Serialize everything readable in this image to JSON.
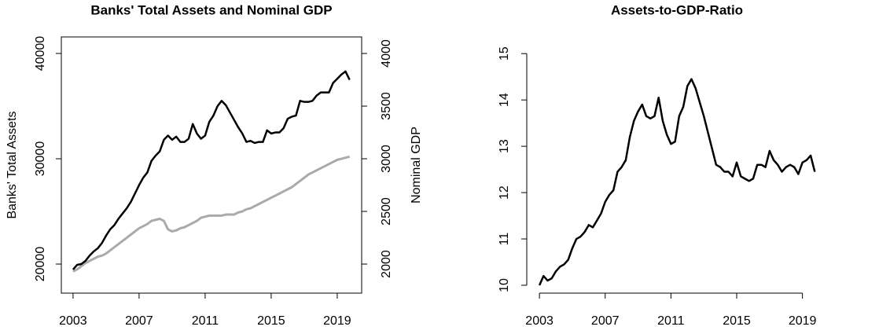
{
  "chart_data": [
    {
      "type": "line",
      "title": "Banks' Total Assets and Nominal GDP",
      "y_label": "Banks' Total Assets",
      "y2_label": "Nominal GDP",
      "x": [
        2003,
        2003.25,
        2003.5,
        2003.75,
        2004,
        2004.25,
        2004.5,
        2004.75,
        2005,
        2005.25,
        2005.5,
        2005.75,
        2006,
        2006.25,
        2006.5,
        2006.75,
        2007,
        2007.25,
        2007.5,
        2007.75,
        2008,
        2008.25,
        2008.5,
        2008.75,
        2009,
        2009.25,
        2009.5,
        2009.75,
        2010,
        2010.25,
        2010.5,
        2010.75,
        2011,
        2011.25,
        2011.5,
        2011.75,
        2012,
        2012.25,
        2012.5,
        2012.75,
        2013,
        2013.25,
        2013.5,
        2013.75,
        2014,
        2014.25,
        2014.5,
        2014.75,
        2015,
        2015.25,
        2015.5,
        2015.75,
        2016,
        2016.25,
        2016.5,
        2016.75,
        2017,
        2017.25,
        2017.5,
        2017.75,
        2018,
        2018.25,
        2018.5,
        2018.75,
        2019,
        2019.25,
        2019.5,
        2019.75
      ],
      "series": [
        {
          "color": "#aaaaaa",
          "axis": "y2",
          "values": [
            1930,
            1950,
            1980,
            2010,
            2030,
            2050,
            2070,
            2080,
            2100,
            2130,
            2160,
            2190,
            2220,
            2250,
            2280,
            2310,
            2340,
            2360,
            2380,
            2410,
            2420,
            2430,
            2410,
            2330,
            2310,
            2320,
            2340,
            2350,
            2370,
            2390,
            2410,
            2440,
            2450,
            2460,
            2460,
            2460,
            2460,
            2470,
            2470,
            2470,
            2490,
            2500,
            2520,
            2530,
            2550,
            2570,
            2590,
            2610,
            2630,
            2650,
            2670,
            2690,
            2710,
            2730,
            2760,
            2790,
            2820,
            2850,
            2870,
            2890,
            2910,
            2930,
            2950,
            2970,
            2990,
            3000,
            3010,
            3020
          ]
        },
        {
          "color": "#000000",
          "values": [
            19480,
            19930,
            20000,
            20300,
            20800,
            21200,
            21500,
            22000,
            22700,
            23300,
            23700,
            24300,
            24800,
            25300,
            25900,
            26700,
            27500,
            28200,
            28700,
            29800,
            30300,
            30700,
            31800,
            32200,
            31800,
            32100,
            31600,
            31600,
            31900,
            33300,
            32400,
            31900,
            32200,
            33500,
            34100,
            35000,
            35500,
            35100,
            34400,
            33700,
            33000,
            32400,
            31600,
            31700,
            31500,
            31600,
            31600,
            32700,
            32400,
            32500,
            32500,
            32900,
            33800,
            34000,
            34100,
            35500,
            35400,
            35400,
            35500,
            36000,
            36300,
            36300,
            36300,
            37200,
            37600,
            38000,
            38300,
            37500
          ]
        }
      ],
      "xlim": [
        2002.29,
        2020.48
      ],
      "xticks": [
        2003,
        2007,
        2011,
        2015,
        2019
      ],
      "ylim": [
        17240,
        41570
      ],
      "yticks": [
        20000,
        30000,
        40000
      ],
      "y2lim": [
        1724,
        4157
      ],
      "y2ticks": [
        2000,
        2500,
        3000,
        3500,
        4000
      ],
      "frame": true
    },
    {
      "type": "line",
      "title": "Assets-to-GDP-Ratio",
      "x": [
        2003,
        2003.25,
        2003.5,
        2003.75,
        2004,
        2004.25,
        2004.5,
        2004.75,
        2005,
        2005.25,
        2005.5,
        2005.75,
        2006,
        2006.25,
        2006.5,
        2006.75,
        2007,
        2007.25,
        2007.5,
        2007.75,
        2008,
        2008.25,
        2008.5,
        2008.75,
        2009,
        2009.25,
        2009.5,
        2009.75,
        2010,
        2010.25,
        2010.5,
        2010.75,
        2011,
        2011.25,
        2011.5,
        2011.75,
        2012,
        2012.25,
        2012.5,
        2012.75,
        2013,
        2013.25,
        2013.5,
        2013.75,
        2014,
        2014.25,
        2014.5,
        2014.75,
        2015,
        2015.25,
        2015.5,
        2015.75,
        2016,
        2016.25,
        2016.5,
        2016.75,
        2017,
        2017.25,
        2017.5,
        2017.75,
        2018,
        2018.25,
        2018.5,
        2018.75,
        2019,
        2019.25,
        2019.5,
        2019.75
      ],
      "series": [
        {
          "color": "#000000",
          "values": [
            10.0,
            10.2,
            10.1,
            10.15,
            10.3,
            10.4,
            10.45,
            10.55,
            10.8,
            11.0,
            11.05,
            11.15,
            11.3,
            11.25,
            11.4,
            11.55,
            11.8,
            11.95,
            12.05,
            12.45,
            12.55,
            12.7,
            13.2,
            13.55,
            13.75,
            13.9,
            13.65,
            13.6,
            13.65,
            14.05,
            13.55,
            13.25,
            13.05,
            13.1,
            13.65,
            13.85,
            14.3,
            14.45,
            14.25,
            13.95,
            13.65,
            13.3,
            12.95,
            12.6,
            12.55,
            12.45,
            12.45,
            12.35,
            12.65,
            12.35,
            12.3,
            12.25,
            12.3,
            12.6,
            12.6,
            12.55,
            12.9,
            12.7,
            12.6,
            12.45,
            12.55,
            12.6,
            12.55,
            12.4,
            12.65,
            12.7,
            12.8,
            12.45
          ]
        }
      ],
      "xlim": [
        2002.23,
        2020.5
      ],
      "xticks": [
        2003,
        2007,
        2011,
        2015,
        2019
      ],
      "ylim": [
        9.83,
        15.36
      ],
      "yticks": [
        10,
        11,
        12,
        13,
        14,
        15
      ],
      "frame": false
    }
  ]
}
